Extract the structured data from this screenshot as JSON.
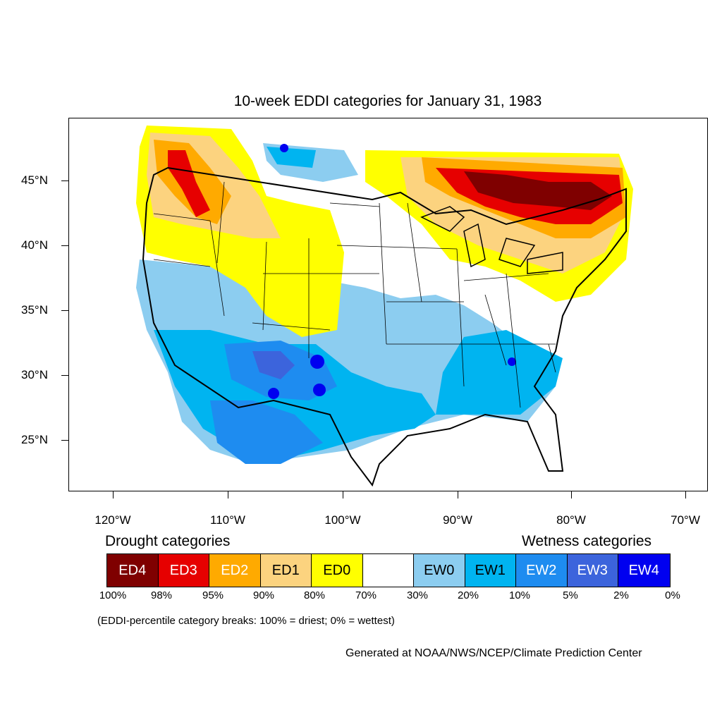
{
  "title": "10-week EDDI categories for January 31, 1983",
  "map": {
    "y_axis_labels": [
      "45°N",
      "40°N",
      "35°N",
      "30°N",
      "25°N"
    ],
    "x_axis_labels": [
      "120°W",
      "110°W",
      "100°W",
      "90°W",
      "80°W",
      "70°W"
    ],
    "colors": {
      "ED4": "#7f0000",
      "ED3": "#e60000",
      "ED2": "#ffaa00",
      "ED1": "#fcd37f",
      "ED0": "#ffff00",
      "normal": "#ffffff",
      "EW0": "#8ccdf0",
      "EW1": "#00b4f0",
      "EW2": "#1e8cf0",
      "EW3": "#3c64dc",
      "EW4": "#0000f0"
    }
  },
  "legend": {
    "drought_heading": "Drought categories",
    "wetness_heading": "Wetness categories",
    "categories": [
      "ED4",
      "ED3",
      "ED2",
      "ED1",
      "ED0",
      "",
      "EW0",
      "EW1",
      "EW2",
      "EW3",
      "EW4"
    ],
    "percentiles": [
      "100%",
      "98%",
      "95%",
      "90%",
      "80%",
      "70%",
      "30%",
      "20%",
      "10%",
      "5%",
      "2%",
      "0%"
    ]
  },
  "note": "(EDDI-percentile category breaks: 100% = driest; 0% = wettest)",
  "credit": "Generated at NOAA/NWS/NCEP/Climate Prediction Center"
}
